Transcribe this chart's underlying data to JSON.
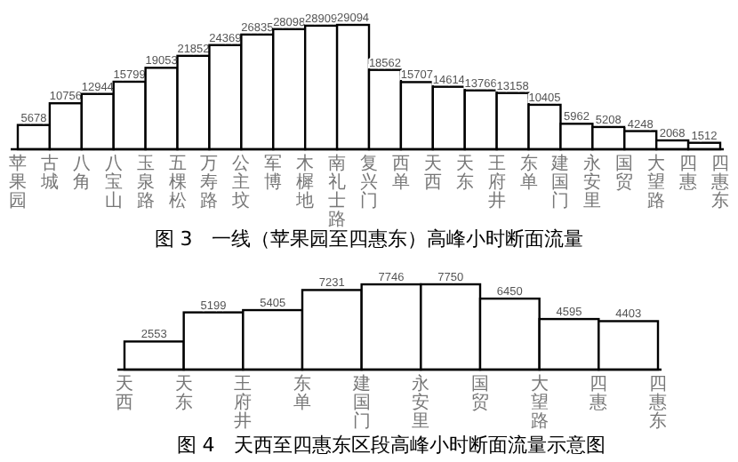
{
  "chart_data": [
    {
      "type": "bar",
      "title": "图 3　一线（苹果园至四惠东）高峰小时断面流量",
      "categories": [
        "苹果园",
        "古城",
        "八角",
        "八宝山",
        "玉泉路",
        "五棵松",
        "万寿路",
        "公主坟",
        "军博",
        "木樨地",
        "南礼士路",
        "复兴门",
        "西单",
        "天西",
        "天东",
        "王府井",
        "东单",
        "建国门",
        "永安里",
        "国贸",
        "大望路",
        "四惠",
        "四惠东"
      ],
      "values": [
        5678,
        10756,
        12944,
        15799,
        19053,
        21852,
        24369,
        26835,
        28098,
        28909,
        29094,
        18562,
        15707,
        14614,
        13766,
        13158,
        10405,
        5962,
        5208,
        4248,
        2068,
        1512,
        null
      ],
      "color": "#ffffff",
      "data_labels": true
    },
    {
      "type": "bar",
      "title": "图 4　天西至四惠东区段高峰小时断面流量示意图",
      "categories": [
        "天西",
        "天东",
        "王府井",
        "东单",
        "建国门",
        "永安里",
        "国贸",
        "大望路",
        "四惠",
        "四惠东"
      ],
      "values": [
        2553,
        5199,
        5405,
        7231,
        7746,
        7750,
        6450,
        4595,
        4403,
        null
      ],
      "color": "#ffffff",
      "data_labels": true
    }
  ]
}
